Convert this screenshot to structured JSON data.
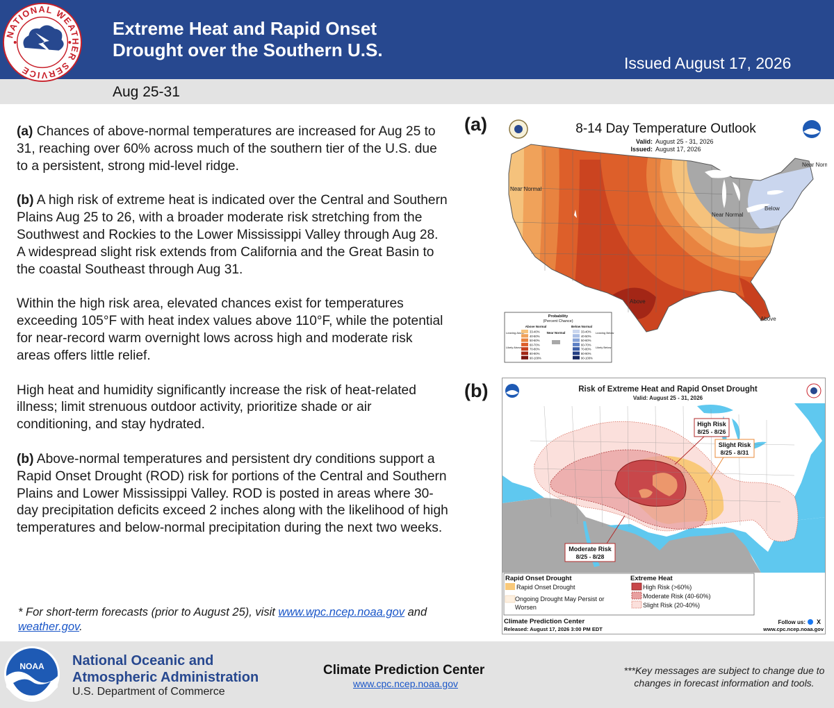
{
  "header": {
    "title_line1": "Extreme Heat and Rapid Onset",
    "title_line2": "Drought over the Southern U.S.",
    "issued": "Issued August 17, 2026",
    "date_range": "Aug 25-31",
    "bg_color": "#27488f"
  },
  "nws_logo": {
    "top_text": "NATIONAL WEATHER SERVICE",
    "icon": "nws-logo-icon"
  },
  "body": {
    "p1_label": "(a)",
    "p1_text": " Chances of above-normal temperatures are increased for Aug 25 to 31, reaching over 60% across much of the southern tier of the U.S. due to a persistent, strong mid-level ridge.",
    "p2_label": "(b)",
    "p2_text": " A high risk of extreme heat is indicated over the Central and Southern Plains Aug 25 to 26, with a broader moderate risk stretching from the Southwest and Rockies to the Lower Mississippi Valley through Aug 28. A widespread slight risk extends from California and the Great Basin to the coastal Southeast through Aug 31.",
    "p3_text": "Within the high risk area, elevated chances exist for temperatures exceeding 105°F with heat index values above 110°F, while the potential for near-record warm overnight lows across high and moderate risk areas offers little relief.",
    "p4_text": "High heat and humidity significantly increase the risk of heat-related illness; limit strenuous outdoor activity, prioritize shade or air conditioning, and stay hydrated.",
    "p5_label": "(b)",
    "p5_text": " Above-normal temperatures and persistent dry conditions support a Rapid Onset Drought (ROD) risk for portions of the Central and Southern Plains and Lower Mississippi Valley. ROD is posted in areas where 30-day precipitation deficits exceed 2 inches along with the likelihood of high temperatures and below-normal precipitation during the next two weeks."
  },
  "footnote": {
    "pre": "* For short-term forecasts (prior to August 25), visit ",
    "link1": "www.wpc.ncep.noaa.gov",
    "mid": " and ",
    "link2": "weather.gov",
    "post": "."
  },
  "map_a": {
    "label": "(a)",
    "title": "8-14 Day Temperature Outlook",
    "valid_label": "Valid:",
    "valid_value": "August 25 - 31, 2026",
    "issued_label": "Issued:",
    "issued_value": "August 17, 2026",
    "regions": {
      "near_normal_west": "Near Normal",
      "near_normal_ne": "Near Normal",
      "near_normal_glakes": "Near Normal",
      "below": "Below",
      "above_tx": "Above",
      "above_fl": "Above"
    },
    "legend": {
      "title": "Probability",
      "subtitle": "(Percent Chance)",
      "above_header": "Above Normal",
      "near_header": "Near Normal",
      "below_header": "Below Normal",
      "leaning_above": "Leaning Above",
      "likely_above": "Likely Above",
      "leaning_below": "Leaning Below",
      "likely_below": "Likely Below",
      "above_bins": [
        "33-40%",
        "40-50%",
        "50-60%",
        "60-70%",
        "70-80%",
        "80-90%",
        "90-100%"
      ],
      "below_bins": [
        "33-40%",
        "40-50%",
        "50-60%",
        "60-70%",
        "70-80%",
        "80-90%",
        "90-100%"
      ],
      "above_colors": [
        "#f5c27c",
        "#f0a25a",
        "#e88340",
        "#dd5f2a",
        "#c8401e",
        "#a32616",
        "#7a1410"
      ],
      "below_colors": [
        "#cad6ee",
        "#a9bde4",
        "#87a3d8",
        "#5d80c4",
        "#3b5ea8",
        "#243f85",
        "#152560"
      ],
      "near_color": "#a8a8a8"
    }
  },
  "map_b": {
    "label": "(b)",
    "title": "Risk of Extreme Heat and Rapid Onset Drought",
    "valid": "Valid: August 25 - 31, 2026",
    "callout_high": "High Risk",
    "callout_high_dates": "8/25 - 8/26",
    "callout_slight": "Slight Risk",
    "callout_slight_dates": "8/25 - 8/31",
    "callout_moderate": "Moderate Risk",
    "callout_moderate_dates": "8/25 - 8/28",
    "legend": {
      "rod_header": "Rapid Onset Drought",
      "rod_item": "Rapid Onset Drought",
      "ongoing_item": "Ongoing Drought May Persist or Worsen",
      "heat_header": "Extreme Heat",
      "high": "High Risk (>60%)",
      "moderate": "Moderate Risk (40-60%)",
      "slight": "Slight Risk (20-40%)"
    },
    "footer_name": "Climate Prediction Center",
    "footer_released": "Released: August 17, 2026 3:00 PM EDT",
    "follow_us": "Follow us:",
    "footer_url": "www.cpc.ncep.noaa.gov",
    "colors": {
      "high": "#c8474a",
      "moderate": "#e8a0a0",
      "slight": "#fbe0dc",
      "rod": "#f9c97a",
      "ocean": "#5fc8ef",
      "mexico": "#a9a9a9"
    }
  },
  "footer": {
    "agency_line1": "National Oceanic and",
    "agency_line2": "Atmospheric Administration",
    "dept": "U.S. Department of Commerce",
    "cpc_name": "Climate Prediction Center",
    "cpc_url": "www.cpc.ncep.noaa.gov",
    "disclaimer": "***Key messages are subject to change due to changes in forecast information and tools.",
    "noaa_logo_text": "NOAA"
  }
}
